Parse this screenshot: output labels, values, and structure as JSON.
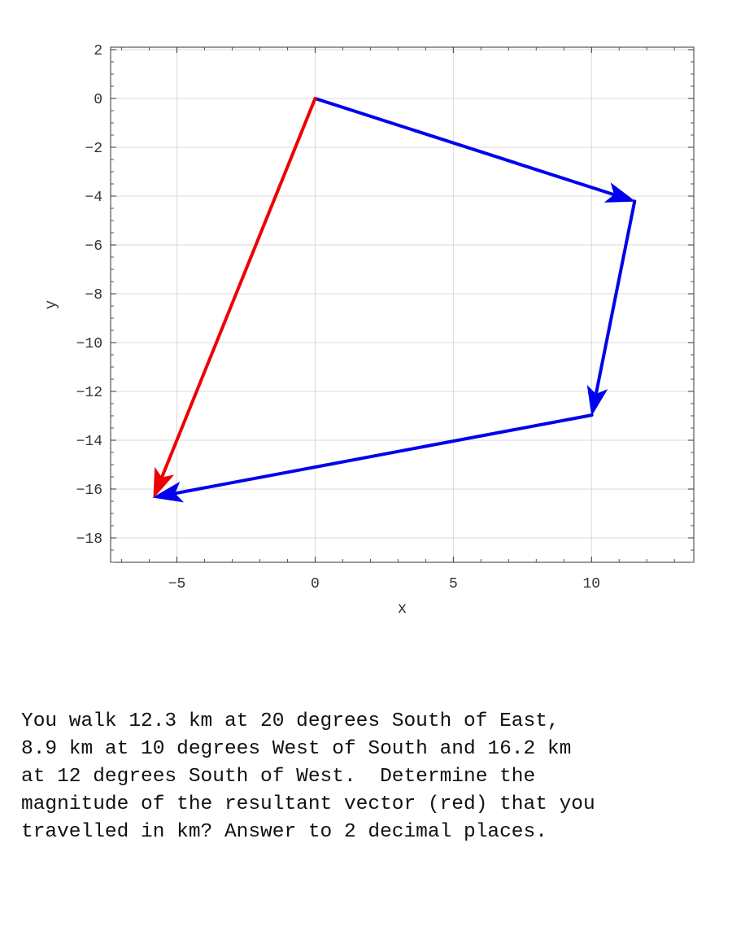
{
  "chart_data": {
    "type": "line",
    "title": "",
    "xlabel": "x",
    "ylabel": "y",
    "xlim": [
      -7.4,
      13.7
    ],
    "ylim": [
      -19,
      2.1
    ],
    "x_ticks": [
      -5,
      0,
      5,
      10
    ],
    "y_ticks": [
      2,
      0,
      -2,
      -4,
      -6,
      -8,
      -10,
      -12,
      -14,
      -16,
      -18
    ],
    "grid": true,
    "series": [
      {
        "color": "#0000ee",
        "x": [
          0,
          11.56
        ],
        "y": [
          0,
          -4.21
        ]
      },
      {
        "color": "#0000ee",
        "x": [
          11.56,
          10.01
        ],
        "y": [
          -4.21,
          -12.97
        ]
      },
      {
        "color": "#0000ee",
        "x": [
          10.01,
          -5.84
        ],
        "y": [
          -12.97,
          -16.34
        ]
      },
      {
        "color": "#ee0000",
        "x": [
          0,
          -5.84
        ],
        "y": [
          0,
          -16.34
        ]
      }
    ]
  },
  "question": {
    "lines": [
      "You walk 12.3 km at 20 degrees South of East,",
      "8.9 km at 10 degrees West of South and 16.2 km",
      "at 12 degrees South of West.  Determine the",
      "magnitude of the resultant vector (red) that you",
      "travelled in km? Answer to 2 decimal places."
    ]
  }
}
